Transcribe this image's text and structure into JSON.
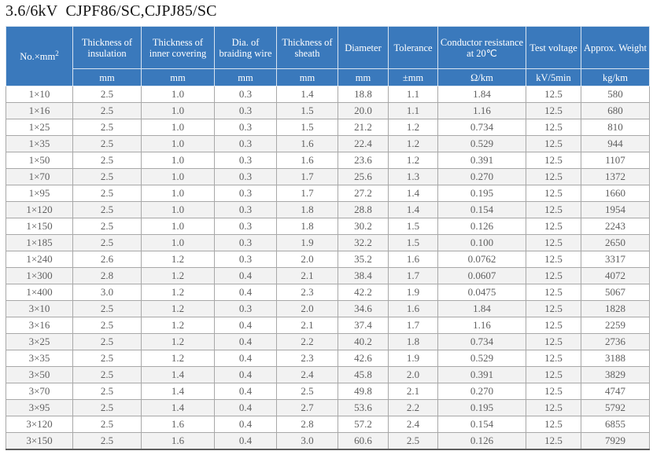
{
  "page_title": "3.6/6kV  CJPF86/SC,CJPJ85/SC",
  "colors": {
    "header_bg": "#3a79bc",
    "header_text": "#ffffff",
    "body_text": "#5f5f5f",
    "row_alt_bg": "#f2f2f2",
    "grid_line": "#a8a8a8"
  },
  "table": {
    "columns": [
      {
        "label": "No.×mm",
        "sup": "2",
        "unit": ""
      },
      {
        "label": "Thickness of insulation",
        "unit": "mm"
      },
      {
        "label": "Thickness of inner covering",
        "unit": "mm"
      },
      {
        "label": "Dia. of braiding wire",
        "unit": "mm"
      },
      {
        "label": "Thickness of sheath",
        "unit": "mm"
      },
      {
        "label": "Diameter",
        "unit": "mm"
      },
      {
        "label": "Tolerance",
        "unit": "±mm"
      },
      {
        "label": "Conductor resistance at 20℃",
        "unit": "Ω/km"
      },
      {
        "label": "Test voltage",
        "unit": "kV/5min"
      },
      {
        "label": "Approx. Weight",
        "unit": "kg/km"
      }
    ],
    "rows": [
      [
        "1×10",
        "2.5",
        "1.0",
        "0.3",
        "1.4",
        "18.8",
        "1.1",
        "1.84",
        "12.5",
        "580"
      ],
      [
        "1×16",
        "2.5",
        "1.0",
        "0.3",
        "1.5",
        "20.0",
        "1.1",
        "1.16",
        "12.5",
        "680"
      ],
      [
        "1×25",
        "2.5",
        "1.0",
        "0.3",
        "1.5",
        "21.2",
        "1.2",
        "0.734",
        "12.5",
        "810"
      ],
      [
        "1×35",
        "2.5",
        "1.0",
        "0.3",
        "1.6",
        "22.4",
        "1.2",
        "0.529",
        "12.5",
        "944"
      ],
      [
        "1×50",
        "2.5",
        "1.0",
        "0.3",
        "1.6",
        "23.6",
        "1.2",
        "0.391",
        "12.5",
        "1107"
      ],
      [
        "1×70",
        "2.5",
        "1.0",
        "0.3",
        "1.7",
        "25.6",
        "1.3",
        "0.270",
        "12.5",
        "1372"
      ],
      [
        "1×95",
        "2.5",
        "1.0",
        "0.3",
        "1.7",
        "27.2",
        "1.4",
        "0.195",
        "12.5",
        "1660"
      ],
      [
        "1×120",
        "2.5",
        "1.0",
        "0.3",
        "1.8",
        "28.8",
        "1.4",
        "0.154",
        "12.5",
        "1954"
      ],
      [
        "1×150",
        "2.5",
        "1.0",
        "0.3",
        "1.8",
        "30.2",
        "1.5",
        "0.126",
        "12.5",
        "2243"
      ],
      [
        "1×185",
        "2.5",
        "1.0",
        "0.3",
        "1.9",
        "32.2",
        "1.5",
        "0.100",
        "12.5",
        "2650"
      ],
      [
        "1×240",
        "2.6",
        "1.2",
        "0.3",
        "2.0",
        "35.2",
        "1.6",
        "0.0762",
        "12.5",
        "3317"
      ],
      [
        "1×300",
        "2.8",
        "1.2",
        "0.4",
        "2.1",
        "38.4",
        "1.7",
        "0.0607",
        "12.5",
        "4072"
      ],
      [
        "1×400",
        "3.0",
        "1.2",
        "0.4",
        "2.3",
        "42.2",
        "1.9",
        "0.0475",
        "12.5",
        "5067"
      ],
      [
        "3×10",
        "2.5",
        "1.2",
        "0.3",
        "2.0",
        "34.6",
        "1.6",
        "1.84",
        "12.5",
        "1828"
      ],
      [
        "3×16",
        "2.5",
        "1.2",
        "0.4",
        "2.1",
        "37.4",
        "1.7",
        "1.16",
        "12.5",
        "2259"
      ],
      [
        "3×25",
        "2.5",
        "1.2",
        "0.4",
        "2.2",
        "40.2",
        "1.8",
        "0.734",
        "12.5",
        "2736"
      ],
      [
        "3×35",
        "2.5",
        "1.2",
        "0.4",
        "2.3",
        "42.6",
        "1.9",
        "0.529",
        "12.5",
        "3188"
      ],
      [
        "3×50",
        "2.5",
        "1.4",
        "0.4",
        "2.4",
        "45.8",
        "2.0",
        "0.391",
        "12.5",
        "3829"
      ],
      [
        "3×70",
        "2.5",
        "1.4",
        "0.4",
        "2.5",
        "49.8",
        "2.1",
        "0.270",
        "12.5",
        "4747"
      ],
      [
        "3×95",
        "2.5",
        "1.4",
        "0.4",
        "2.7",
        "53.6",
        "2.2",
        "0.195",
        "12.5",
        "5792"
      ],
      [
        "3×120",
        "2.5",
        "1.6",
        "0.4",
        "2.8",
        "57.2",
        "2.4",
        "0.154",
        "12.5",
        "6855"
      ],
      [
        "3×150",
        "2.5",
        "1.6",
        "0.4",
        "3.0",
        "60.6",
        "2.5",
        "0.126",
        "12.5",
        "7929"
      ]
    ]
  }
}
